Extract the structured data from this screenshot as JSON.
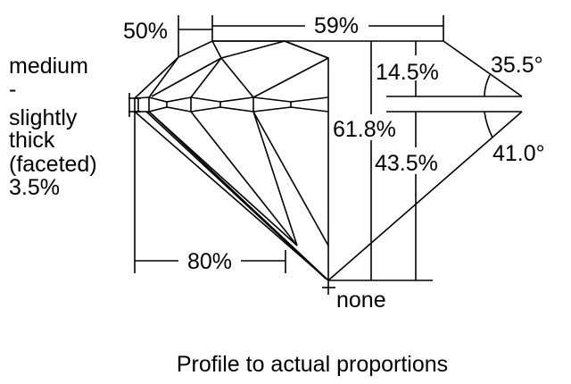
{
  "left_label": {
    "lines": [
      "medium",
      "-",
      "slightly",
      "thick",
      "(faceted)",
      "3.5%"
    ]
  },
  "dimensions": {
    "star_length": "50%",
    "table": "59%",
    "crown_height": "14.5%",
    "crown_angle": "35.5°",
    "total_depth": "61.8%",
    "pavilion_depth": "43.5%",
    "pavilion_angle": "41.0°",
    "lower_half_length": "80%",
    "culet": "none"
  },
  "caption": "Profile to actual proportions"
}
